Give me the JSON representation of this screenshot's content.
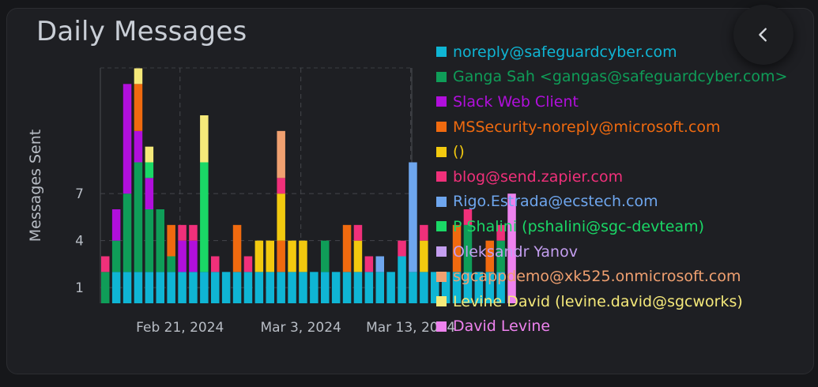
{
  "header": {
    "title": "Daily Messages"
  },
  "icons": {
    "back": "chevron-left-icon"
  },
  "chart_data": {
    "type": "bar",
    "stacked": true,
    "ylabel": "Messages Sent",
    "yticks": [
      1,
      4,
      7
    ],
    "ylim": [
      0,
      14
    ],
    "x_tick_labels": [
      "Feb 21, 2024",
      "Mar 3, 2024",
      "Mar 13, 2024"
    ],
    "x_tick_positions": [
      6.8,
      17.8,
      27.8
    ],
    "grid": true,
    "legend_position": "right",
    "series": [
      {
        "name": "noreply@safeguardcyber.com",
        "color": "#0fb5d4",
        "values": [
          0,
          2,
          2,
          2,
          2,
          2,
          2,
          2,
          2,
          2,
          2,
          2,
          2,
          2,
          2,
          2,
          2,
          2,
          2,
          2,
          2,
          2,
          2,
          2,
          2,
          2,
          2,
          3,
          2,
          2,
          2,
          2,
          2,
          2,
          2,
          2,
          2,
          0
        ]
      },
      {
        "name": "Ganga Sah <gangas@safeguardcyber.com>",
        "color": "#0f9d58",
        "values": [
          2,
          2,
          5,
          7,
          4,
          4,
          1,
          0,
          0,
          0,
          0,
          0,
          0,
          0,
          0,
          0,
          0,
          0,
          0,
          0,
          2,
          0,
          0,
          0,
          0,
          0,
          0,
          0,
          0,
          0,
          0,
          0,
          0,
          3,
          0,
          0,
          2,
          0
        ]
      },
      {
        "name": "Slack Web Client",
        "color": "#b10fdc",
        "values": [
          0,
          2,
          7,
          2,
          2,
          0,
          0,
          2,
          2,
          0,
          0,
          0,
          0,
          0,
          0,
          0,
          0,
          0,
          0,
          0,
          0,
          0,
          0,
          0,
          0,
          0,
          0,
          0,
          0,
          0,
          0,
          0,
          0,
          0,
          0,
          0,
          0,
          0
        ]
      },
      {
        "name": "MSSecurity-noreply@microsoft.com",
        "color": "#f06a0f",
        "values": [
          0,
          0,
          0,
          3,
          0,
          0,
          2,
          0,
          0,
          0,
          0,
          0,
          3,
          0,
          0,
          0,
          2,
          0,
          0,
          0,
          0,
          0,
          3,
          0,
          0,
          0,
          0,
          0,
          0,
          0,
          0,
          0,
          3,
          0,
          0,
          2,
          0,
          0
        ]
      },
      {
        "name": "()",
        "color": "#f2c90f",
        "values": [
          0,
          0,
          0,
          0,
          0,
          0,
          0,
          0,
          0,
          0,
          0,
          0,
          0,
          0,
          2,
          2,
          3,
          2,
          2,
          0,
          0,
          0,
          0,
          2,
          0,
          0,
          0,
          0,
          0,
          2,
          0,
          0,
          0,
          0,
          0,
          0,
          0,
          0
        ]
      },
      {
        "name": "blog@send.zapier.com",
        "color": "#f0307a",
        "values": [
          1,
          0,
          0,
          0,
          0,
          0,
          0,
          1,
          1,
          0,
          1,
          0,
          0,
          1,
          0,
          0,
          1,
          0,
          0,
          0,
          0,
          0,
          0,
          1,
          1,
          0,
          0,
          1,
          0,
          1,
          0,
          0,
          0,
          1,
          0,
          0,
          1,
          0
        ]
      },
      {
        "name": "Rigo.Estrada@ecstech.com",
        "color": "#6ea6ee",
        "values": [
          0,
          0,
          0,
          0,
          0,
          0,
          0,
          0,
          0,
          0,
          0,
          0,
          0,
          0,
          0,
          0,
          0,
          0,
          0,
          0,
          0,
          0,
          0,
          0,
          0,
          1,
          0,
          0,
          7,
          0,
          0,
          0,
          0,
          0,
          0,
          0,
          0,
          0
        ]
      },
      {
        "name": "P Shalini (pshalini@sgc-devteam)",
        "color": "#1ad866",
        "values": [
          0,
          0,
          0,
          0,
          1,
          0,
          0,
          0,
          0,
          7,
          0,
          0,
          0,
          0,
          0,
          0,
          0,
          0,
          0,
          0,
          0,
          0,
          0,
          0,
          0,
          0,
          0,
          0,
          0,
          0,
          0,
          0,
          0,
          0,
          0,
          0,
          0,
          0
        ]
      },
      {
        "name": "Oleksandr Yanov",
        "color": "#c49ef0",
        "values": [
          0,
          0,
          0,
          0,
          0,
          0,
          0,
          0,
          0,
          0,
          0,
          0,
          0,
          0,
          0,
          0,
          0,
          0,
          0,
          0,
          0,
          0,
          0,
          0,
          0,
          0,
          0,
          0,
          0,
          0,
          0,
          0,
          0,
          0,
          0,
          0,
          0,
          0
        ]
      },
      {
        "name": "sgcappdemo@xk525.onmicrosoft.com",
        "color": "#f0a070",
        "values": [
          0,
          0,
          0,
          0,
          0,
          0,
          0,
          0,
          0,
          0,
          0,
          0,
          0,
          0,
          0,
          0,
          3,
          0,
          0,
          0,
          0,
          0,
          0,
          0,
          0,
          0,
          0,
          0,
          0,
          0,
          0,
          0,
          0,
          0,
          0,
          0,
          0,
          0
        ]
      },
      {
        "name": "Levine David (levine.david@sgcworks)",
        "color": "#f5e97a",
        "values": [
          0,
          0,
          0,
          1,
          1,
          0,
          0,
          0,
          0,
          3,
          0,
          0,
          0,
          0,
          0,
          0,
          0,
          0,
          0,
          0,
          0,
          0,
          0,
          0,
          0,
          0,
          0,
          0,
          0,
          0,
          0,
          0,
          0,
          0,
          0,
          0,
          0,
          0
        ]
      },
      {
        "name": "David Levine",
        "color": "#ee82ee",
        "values": [
          0,
          0,
          0,
          0,
          0,
          0,
          0,
          0,
          0,
          0,
          0,
          0,
          0,
          0,
          0,
          0,
          0,
          0,
          0,
          0,
          0,
          0,
          0,
          0,
          0,
          0,
          0,
          0,
          0,
          0,
          0,
          0,
          0,
          0,
          0,
          0,
          0,
          7
        ]
      }
    ]
  }
}
